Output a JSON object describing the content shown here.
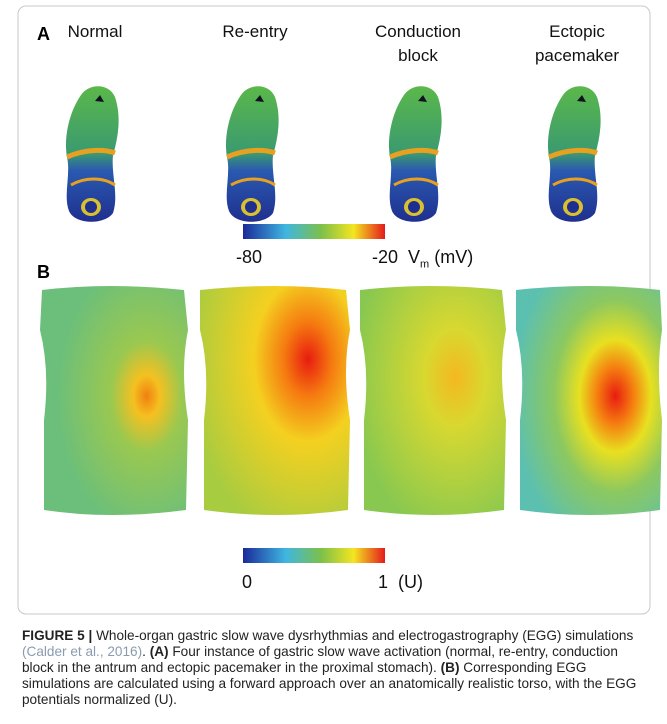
{
  "panel_a": {
    "label": "A",
    "columns": [
      [
        "Normal"
      ],
      [
        "Re-entry"
      ],
      [
        "Conduction",
        "block"
      ],
      [
        "Ectopic",
        "pacemaker"
      ]
    ],
    "colorbar": {
      "min": "-80",
      "max": "-20",
      "symbol": "V",
      "subscript": "m",
      "unit": "(mV)"
    }
  },
  "panel_b": {
    "label": "B",
    "colorbar": {
      "min": "0",
      "max": "1",
      "unit": "(U)"
    }
  },
  "caption": {
    "figure": "FIGURE 5 |",
    "text1": "Whole-organ gastric slow wave dysrhythmias and electrogastrography (EGG) simulations",
    "citation": "(Calder et al., 2016)",
    "text2": ".",
    "a": "(A)",
    "text3": "Four instance of gastric slow wave activation (normal, re-entry, conduction block in the antrum and ectopic pacemaker in the proximal stomach).",
    "b": "(B)",
    "text4": "Corresponding EGG simulations are calculated using a forward approach over an anatomically realistic torso, with the EGG potentials normalized (U)."
  }
}
